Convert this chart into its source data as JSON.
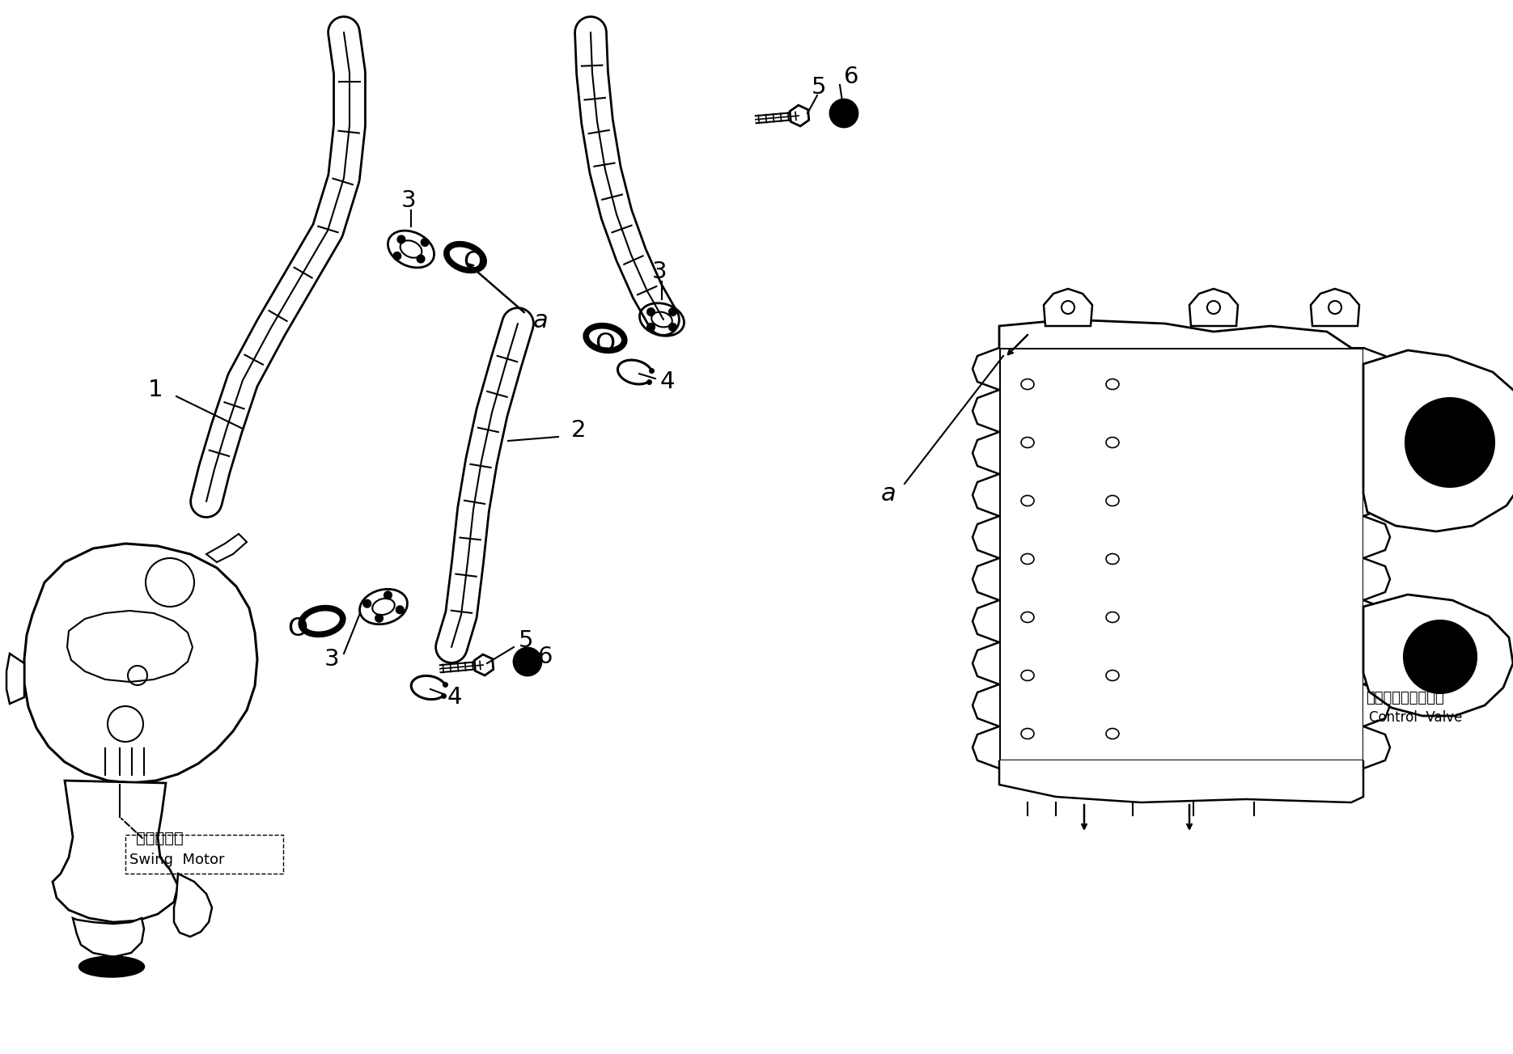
{
  "bg_color": "#ffffff",
  "line_color": "#000000",
  "swing_motor_jp": "旋回モータ",
  "swing_motor_en": "Swing  Motor",
  "control_valve_jp": "コントロールバルブ",
  "control_valve_en": "Control  Valve",
  "figsize": [
    18.7,
    13.03
  ],
  "dpi": 100,
  "xlim": [
    0,
    1870
  ],
  "ylim": [
    1303,
    0
  ]
}
